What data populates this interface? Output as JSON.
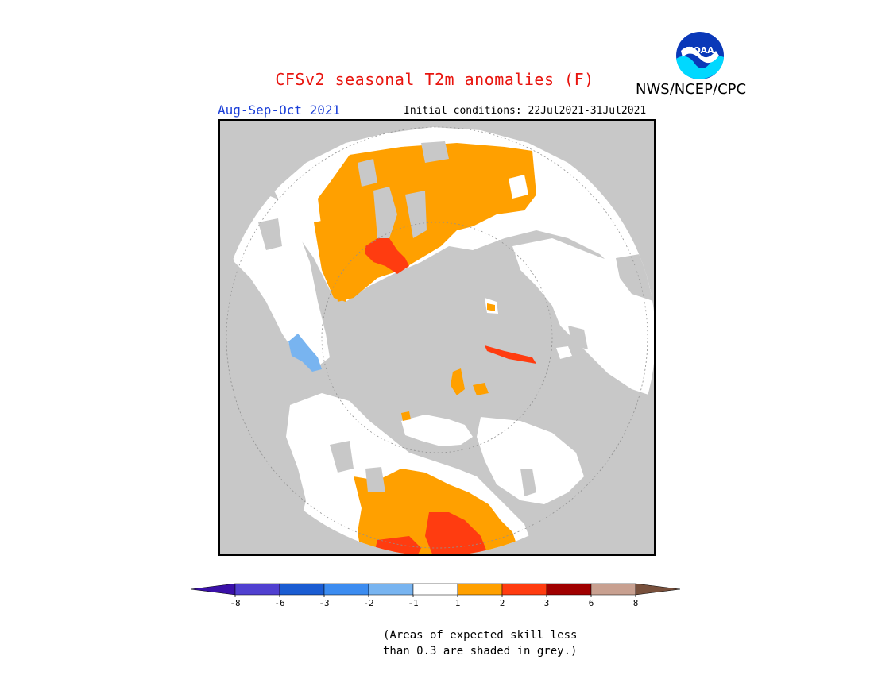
{
  "header": {
    "title": "CFSv2 seasonal T2m anomalies (F)",
    "agency": "NWS/NCEP/CPC",
    "season": "Aug-Sep-Oct 2021",
    "initial_conditions": "Initial conditions: 22Jul2021-31Jul2021"
  },
  "logo": {
    "text": "NOAA",
    "icon": "noaa-logo-icon"
  },
  "legend": {
    "bins": [
      {
        "color": "#3a10a8"
      },
      {
        "color": "#5040d0"
      },
      {
        "color": "#1a5cd2"
      },
      {
        "color": "#3c8cf0"
      },
      {
        "color": "#78b4f0"
      },
      {
        "color": "#ffffff"
      },
      {
        "color": "#ffa000"
      },
      {
        "color": "#ff3c10"
      },
      {
        "color": "#a00000"
      },
      {
        "color": "#c8a090"
      },
      {
        "color": "#78503c"
      }
    ],
    "tick_labels": [
      "-8",
      "-6",
      "-3",
      "-2",
      "-1",
      "1",
      "2",
      "3",
      "6",
      "8"
    ]
  },
  "map": {
    "ocean_color": "#c8c8c8",
    "low_skill_color": "#c8c8c8"
  },
  "note": {
    "line1": "(Areas of expected skill less",
    "line2": "than 0.3 are shaded in grey.)"
  }
}
